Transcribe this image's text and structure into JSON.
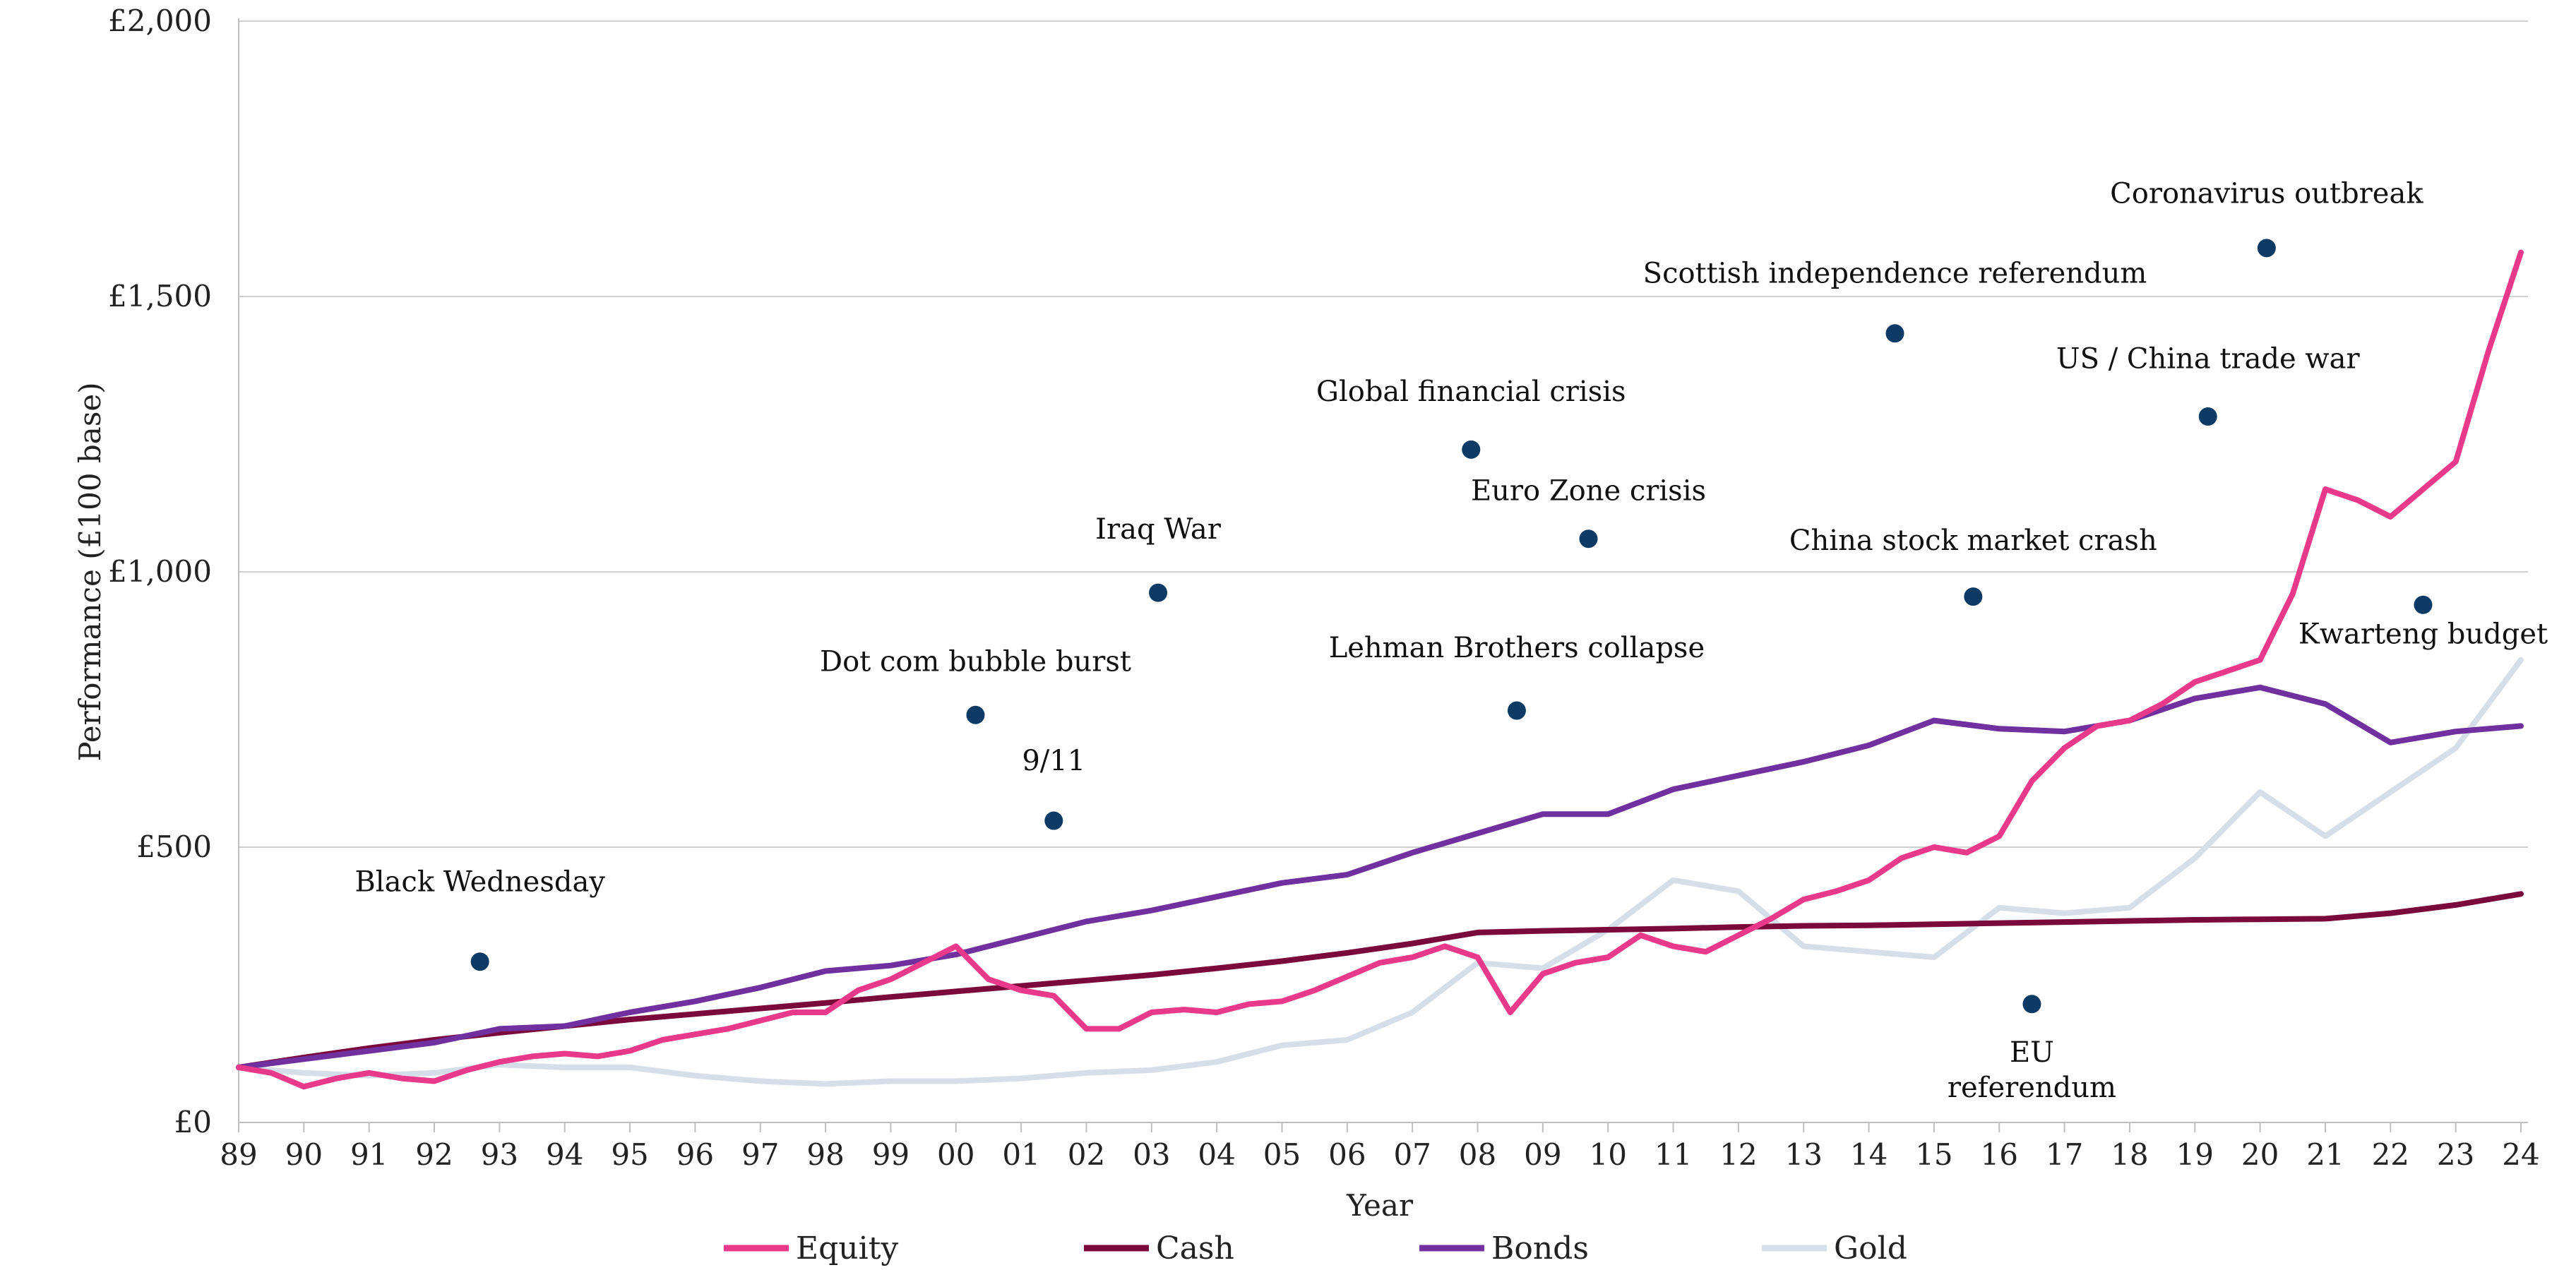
{
  "chart_data": {
    "type": "line",
    "title": "",
    "xlabel": "Year",
    "ylabel": "Performance (£100 base)",
    "x_tick_labels": [
      "89",
      "90",
      "91",
      "92",
      "93",
      "94",
      "95",
      "96",
      "97",
      "98",
      "99",
      "00",
      "01",
      "02",
      "03",
      "04",
      "05",
      "06",
      "07",
      "08",
      "09",
      "10",
      "11",
      "12",
      "13",
      "14",
      "15",
      "16",
      "17",
      "18",
      "19",
      "20",
      "21",
      "22",
      "23",
      "24"
    ],
    "y_tick_labels": [
      "£0",
      "£500",
      "£1,000",
      "£1,500",
      "£2,000"
    ],
    "xlim": [
      1989,
      2024
    ],
    "ylim": [
      0,
      2000
    ],
    "y_ticks": [
      0,
      500,
      1000,
      1500,
      2000
    ],
    "grid": "horizontal",
    "legend_position": "bottom",
    "series": [
      {
        "name": "Equity",
        "color": "#e8398a",
        "x": [
          1989,
          1989.5,
          1990,
          1990.5,
          1991,
          1991.5,
          1992,
          1992.5,
          1993,
          1993.5,
          1994,
          1994.5,
          1995,
          1995.5,
          1996,
          1996.5,
          1997,
          1997.5,
          1998,
          1998.5,
          1999,
          1999.5,
          2000,
          2000.5,
          2001,
          2001.5,
          2002,
          2002.5,
          2003,
          2003.5,
          2004,
          2004.5,
          2005,
          2005.5,
          2006,
          2006.5,
          2007,
          2007.5,
          2008,
          2008.5,
          2009,
          2009.5,
          2010,
          2010.5,
          2011,
          2011.5,
          2012,
          2012.5,
          2013,
          2013.5,
          2014,
          2014.5,
          2015,
          2015.5,
          2016,
          2016.5,
          2017,
          2017.5,
          2018,
          2018.5,
          2019,
          2019.5,
          2020,
          2020.5,
          2021,
          2021.5,
          2022,
          2022.5,
          2023,
          2023.5,
          2024
        ],
        "values": [
          100,
          90,
          65,
          80,
          90,
          80,
          75,
          95,
          110,
          120,
          125,
          120,
          130,
          150,
          160,
          170,
          185,
          200,
          200,
          240,
          260,
          290,
          320,
          260,
          240,
          230,
          170,
          170,
          200,
          205,
          200,
          215,
          220,
          240,
          265,
          290,
          300,
          320,
          300,
          200,
          270,
          290,
          300,
          340,
          320,
          310,
          340,
          370,
          405,
          420,
          440,
          480,
          500,
          490,
          520,
          620,
          680,
          720,
          730,
          760,
          800,
          820,
          840,
          960,
          1150,
          1130,
          1100,
          1150,
          1200,
          1400,
          1580
        ]
      },
      {
        "name": "Cash",
        "color": "#7b0a3c",
        "x": [
          1989,
          1990,
          1991,
          1992,
          1993,
          1994,
          1995,
          1996,
          1997,
          1998,
          1999,
          2000,
          2001,
          2002,
          2003,
          2004,
          2005,
          2006,
          2007,
          2008,
          2009,
          2010,
          2011,
          2012,
          2013,
          2014,
          2015,
          2016,
          2017,
          2018,
          2019,
          2020,
          2021,
          2022,
          2023,
          2024
        ],
        "values": [
          100,
          118,
          135,
          150,
          163,
          175,
          187,
          197,
          207,
          217,
          228,
          238,
          248,
          258,
          268,
          280,
          293,
          308,
          325,
          345,
          348,
          350,
          352,
          355,
          357,
          358,
          360,
          362,
          364,
          366,
          368,
          369,
          370,
          380,
          395,
          415
        ]
      },
      {
        "name": "Bonds",
        "color": "#7030a0",
        "x": [
          1989,
          1990,
          1991,
          1992,
          1993,
          1994,
          1995,
          1996,
          1997,
          1998,
          1999,
          2000,
          2001,
          2002,
          2003,
          2004,
          2005,
          2006,
          2007,
          2008,
          2009,
          2010,
          2011,
          2012,
          2013,
          2014,
          2015,
          2016,
          2017,
          2018,
          2019,
          2020,
          2021,
          2022,
          2023,
          2024
        ],
        "values": [
          100,
          115,
          130,
          145,
          170,
          175,
          200,
          220,
          245,
          275,
          285,
          305,
          335,
          365,
          385,
          410,
          435,
          450,
          490,
          525,
          560,
          560,
          605,
          630,
          655,
          685,
          730,
          715,
          710,
          730,
          770,
          790,
          760,
          690,
          710,
          720
        ]
      },
      {
        "name": "Gold",
        "color": "#d6dfe9",
        "x": [
          1989,
          1990,
          1991,
          1992,
          1993,
          1994,
          1995,
          1996,
          1997,
          1998,
          1999,
          2000,
          2001,
          2002,
          2003,
          2004,
          2005,
          2006,
          2007,
          2008,
          2009,
          2010,
          2011,
          2012,
          2013,
          2014,
          2015,
          2016,
          2017,
          2018,
          2019,
          2020,
          2021,
          2022,
          2023,
          2024
        ],
        "values": [
          100,
          90,
          85,
          90,
          105,
          100,
          100,
          85,
          75,
          70,
          75,
          75,
          80,
          90,
          95,
          110,
          140,
          150,
          200,
          290,
          280,
          350,
          440,
          420,
          320,
          310,
          300,
          390,
          380,
          390,
          480,
          600,
          520,
          600,
          680,
          840
        ]
      }
    ],
    "annotations": [
      {
        "label": "Black Wednesday",
        "x": 1992.7,
        "y": 292,
        "label_lines": [
          "Black Wednesday"
        ],
        "label_y": 420
      },
      {
        "label": "9/11",
        "x": 2001.5,
        "y": 548,
        "label_lines": [
          "9/11"
        ],
        "label_y": 640
      },
      {
        "label": "Dot com bubble burst",
        "x": 2000.3,
        "y": 740,
        "label_lines": [
          "Dot com bubble burst"
        ],
        "label_y": 820
      },
      {
        "label": "Iraq War",
        "x": 2003.1,
        "y": 962,
        "label_lines": [
          "Iraq War"
        ],
        "label_y": 1060
      },
      {
        "label": "Global financial crisis",
        "x": 2007.9,
        "y": 1222,
        "label_lines": [
          "Global financial crisis"
        ],
        "label_y": 1310
      },
      {
        "label": "Lehman Brothers collapse",
        "x": 2008.6,
        "y": 748,
        "label_lines": [
          "Lehman Brothers collapse"
        ],
        "label_y": 845
      },
      {
        "label": "Euro Zone crisis",
        "x": 2009.7,
        "y": 1060,
        "label_lines": [
          "Euro Zone crisis"
        ],
        "label_y": 1130
      },
      {
        "label": "Scottish  independence referendum",
        "x": 2014.4,
        "y": 1433,
        "label_lines": [
          "Scottish  independence referendum"
        ],
        "label_y": 1525
      },
      {
        "label": "China stock market crash",
        "x": 2015.6,
        "y": 955,
        "label_lines": [
          "China stock market crash"
        ],
        "label_y": 1040
      },
      {
        "label": "EU referendum",
        "x": 2016.5,
        "y": 215,
        "label_lines": [
          "EU",
          "referendum"
        ],
        "label_y": 110
      },
      {
        "label": "US / China trade war",
        "x": 2019.2,
        "y": 1282,
        "label_lines": [
          "US / China trade war"
        ],
        "label_y": 1370
      },
      {
        "label": "Coronavirus outbreak",
        "x": 2020.1,
        "y": 1588,
        "label_lines": [
          "Coronavirus outbreak"
        ],
        "label_y": 1670
      },
      {
        "label": "Kwarteng budget",
        "x": 2022.5,
        "y": 940,
        "label_lines": [
          "Kwarteng budget"
        ],
        "label_y": 870
      }
    ],
    "marker_color": "#0d3b66"
  }
}
